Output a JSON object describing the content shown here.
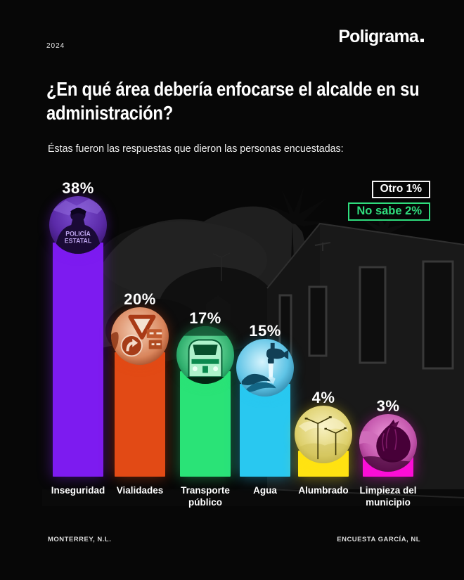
{
  "header": {
    "year": "2024",
    "brand": "Poligrama"
  },
  "title": "¿En qué área debería enfocarse el alcalde en su administración?",
  "subtitle": "Éstas fueron las respuestas que dieron las personas encuestadas:",
  "badges": {
    "otro": {
      "label": "Otro 1%",
      "color": "#ffffff"
    },
    "no_sabe": {
      "label": "No sabe 2%",
      "color": "#2fdd7d"
    }
  },
  "chart_data": {
    "type": "bar",
    "title": "¿En qué área debería enfocarse el alcalde en su administración?",
    "unit": "%",
    "categories": [
      "Inseguridad",
      "Vialidades",
      "Transporte público",
      "Agua",
      "Alumbrado",
      "Limpieza del municipio"
    ],
    "values": [
      38,
      20,
      17,
      15,
      4,
      3
    ],
    "value_labels": [
      "38%",
      "20%",
      "17%",
      "15%",
      "4%",
      "3%"
    ],
    "other_responses": [
      {
        "label": "Otro",
        "value": 1
      },
      {
        "label": "No sabe",
        "value": 2
      }
    ],
    "colors": [
      "#7d1bf0",
      "#e24a15",
      "#2ae377",
      "#29c8f0",
      "#ffe312",
      "#fb0fd6"
    ],
    "icons": [
      "police-officer",
      "traffic-signs",
      "train",
      "water-faucet",
      "street-lights",
      "garbage-bag"
    ],
    "police_patch": {
      "line1": "POLICÍA",
      "line2": "ESTATAL"
    },
    "ylim": [
      0,
      40
    ],
    "grid": false,
    "legend": false
  },
  "footer": {
    "left": "MONTERREY, N.L.",
    "right": "ENCUESTA GARCÍA, NL"
  }
}
